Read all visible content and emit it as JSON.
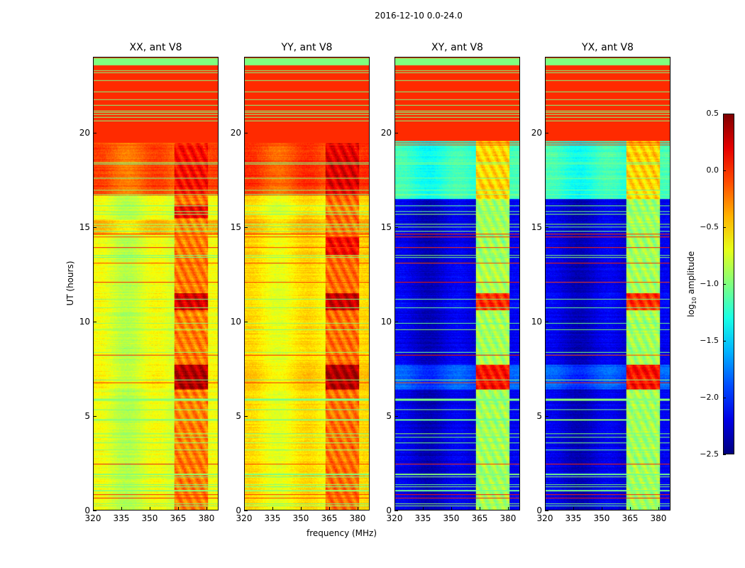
{
  "chart_data": {
    "type": "heatmap",
    "suptitle": "2016-12-10 0.0-24.0",
    "xlabel": "frequency (MHz)",
    "ylabel": "UT (hours)",
    "xticks": [
      "320",
      "335",
      "350",
      "365",
      "380"
    ],
    "xlim": [
      320,
      386.4
    ],
    "yticks": [
      "0",
      "5",
      "10",
      "15",
      "20"
    ],
    "ylim": [
      0,
      24
    ],
    "colorbar": {
      "label_main": "log",
      "label_sub": "10",
      "label_rest": " amplitude",
      "range": [
        -2.5,
        0.5
      ],
      "ticks": [
        "0.5",
        "0.0",
        "−0.5",
        "−1.0",
        "−1.5",
        "−2.0",
        "−2.5"
      ],
      "colormap": "jet"
    },
    "rfi_band_mhz": [
      363,
      381
    ],
    "panels": [
      {
        "title": "XX, ant V8",
        "bands": [
          {
            "t0": 0,
            "t1": 16.7,
            "bg": -0.75,
            "rfi": -0.25
          },
          {
            "t0": 6.4,
            "t1": 7.7,
            "bg": -0.7,
            "rfi": 0.35
          },
          {
            "t0": 10.6,
            "t1": 11.5,
            "bg": -0.7,
            "rfi": 0.25
          },
          {
            "t0": 15.5,
            "t1": 16.2,
            "bg": -0.75,
            "rfi": 0.15
          },
          {
            "t0": 14.6,
            "t1": 15.4,
            "bg": -0.5,
            "rfi": -0.3
          },
          {
            "t0": 16.7,
            "t1": 19.5,
            "bg": -0.15,
            "rfi": 0.1
          },
          {
            "t0": 19.5,
            "t1": 23.6,
            "bg": 0.0,
            "rfi": 0.0
          },
          {
            "t0": 23.6,
            "t1": 24,
            "bg": -1.0,
            "rfi": -1.0
          }
        ]
      },
      {
        "title": "YY, ant V8",
        "bands": [
          {
            "t0": 0,
            "t1": 16.7,
            "bg": -0.6,
            "rfi": -0.2
          },
          {
            "t0": 6.4,
            "t1": 7.7,
            "bg": -0.55,
            "rfi": 0.35
          },
          {
            "t0": 10.6,
            "t1": 11.5,
            "bg": -0.6,
            "rfi": 0.3
          },
          {
            "t0": 13.5,
            "t1": 14.5,
            "bg": -0.6,
            "rfi": 0.1
          },
          {
            "t0": 14.6,
            "t1": 15.4,
            "bg": -0.45,
            "rfi": -0.2
          },
          {
            "t0": 16.7,
            "t1": 19.5,
            "bg": -0.1,
            "rfi": 0.2
          },
          {
            "t0": 19.5,
            "t1": 23.6,
            "bg": 0.0,
            "rfi": 0.0
          },
          {
            "t0": 23.6,
            "t1": 24,
            "bg": -1.0,
            "rfi": -1.0
          }
        ]
      },
      {
        "title": "XY, ant V8",
        "bands": [
          {
            "t0": 0,
            "t1": 16.5,
            "bg": -2.25,
            "rfi": -0.9
          },
          {
            "t0": 6.4,
            "t1": 7.7,
            "bg": -1.9,
            "rfi": 0.1
          },
          {
            "t0": 10.6,
            "t1": 11.5,
            "bg": -2.2,
            "rfi": 0.0
          },
          {
            "t0": 16.5,
            "t1": 19.6,
            "bg": -1.25,
            "rfi": -0.5
          },
          {
            "t0": 19.6,
            "t1": 23.6,
            "bg": 0.0,
            "rfi": 0.0
          },
          {
            "t0": 23.6,
            "t1": 24,
            "bg": -1.0,
            "rfi": -1.0
          }
        ]
      },
      {
        "title": "YX, ant V8",
        "bands": [
          {
            "t0": 0,
            "t1": 16.5,
            "bg": -2.25,
            "rfi": -0.9
          },
          {
            "t0": 6.4,
            "t1": 7.7,
            "bg": -1.9,
            "rfi": 0.1
          },
          {
            "t0": 10.6,
            "t1": 11.5,
            "bg": -2.2,
            "rfi": 0.0
          },
          {
            "t0": 16.5,
            "t1": 19.6,
            "bg": -1.25,
            "rfi": -0.5
          },
          {
            "t0": 19.6,
            "t1": 23.6,
            "bg": 0.0,
            "rfi": 0.0
          },
          {
            "t0": 23.6,
            "t1": 24,
            "bg": -1.0,
            "rfi": -1.0
          }
        ]
      }
    ]
  }
}
